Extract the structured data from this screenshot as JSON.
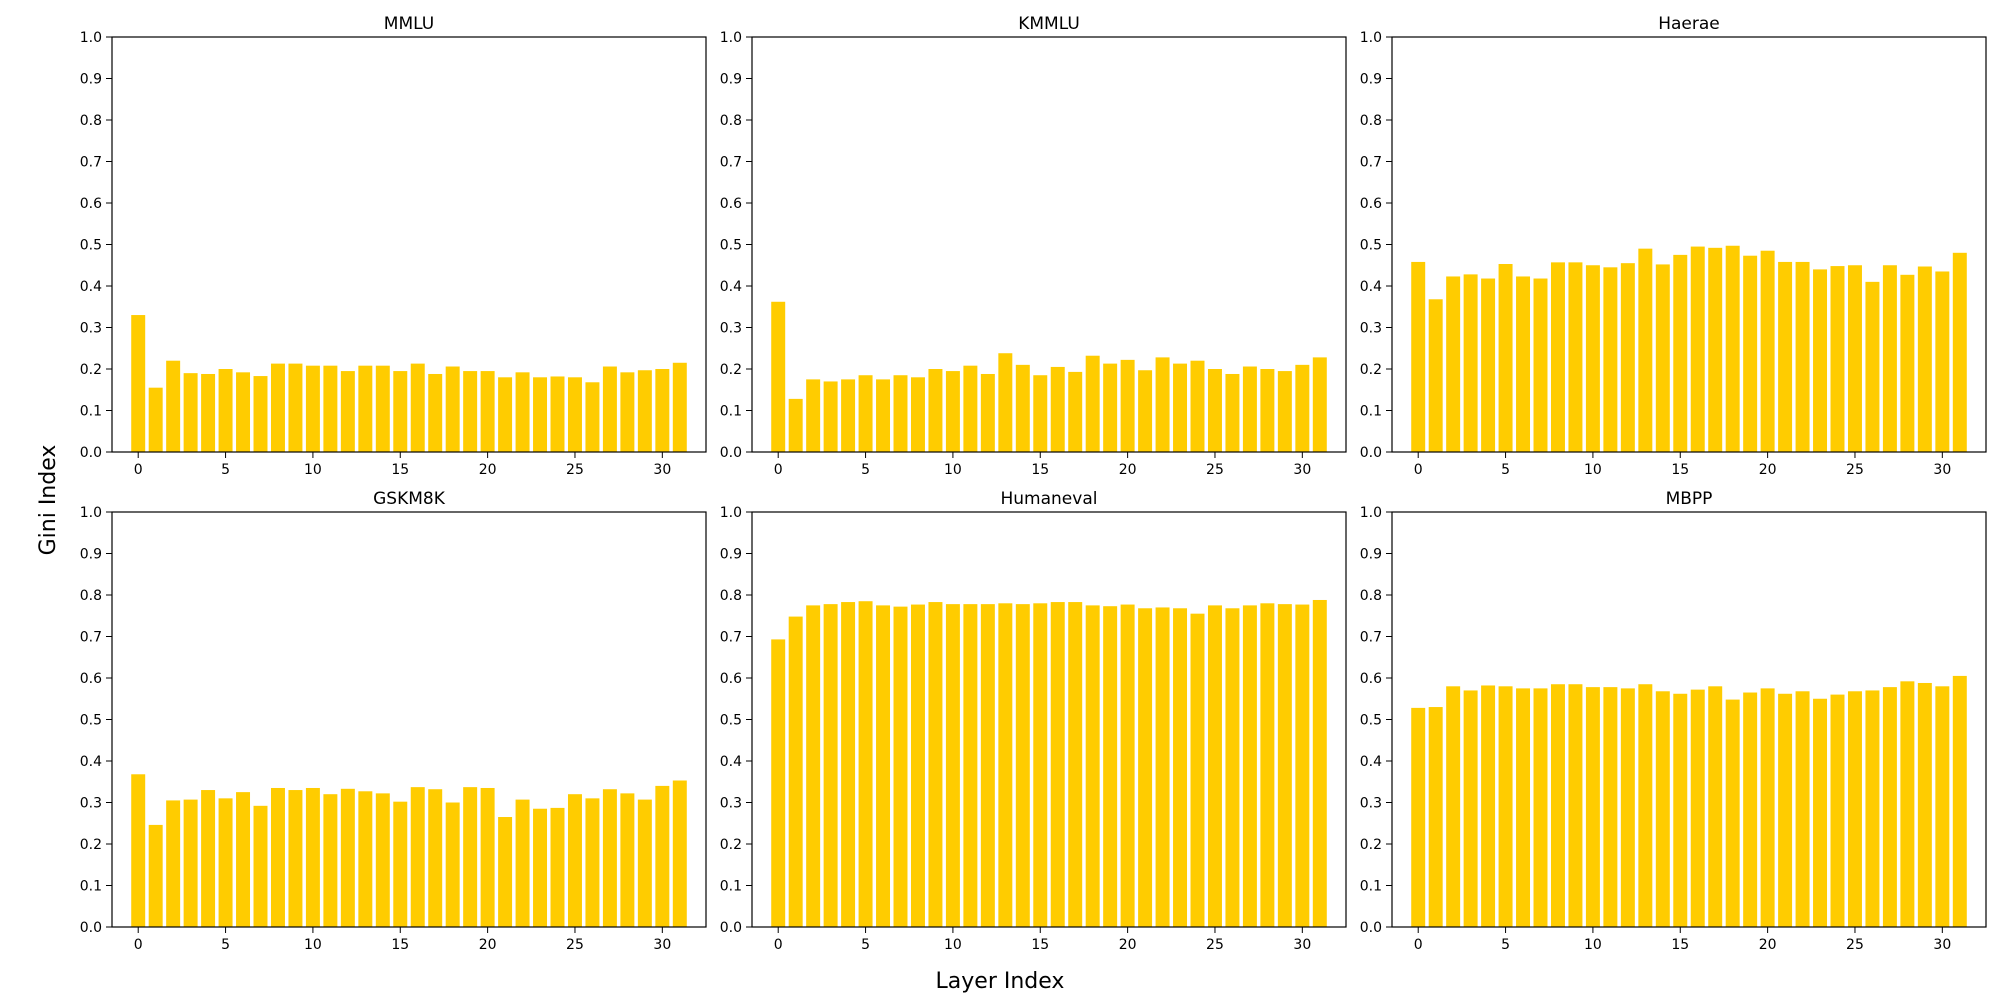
{
  "figure": {
    "xlabel": "Layer Index",
    "ylabel": "Gini Index"
  },
  "chart_data": [
    {
      "type": "bar",
      "title": "MMLU",
      "color": "#ffcc00",
      "ylim": [
        0,
        1.0
      ],
      "xlim": [
        -1.5,
        32.5
      ],
      "yticks": [
        "0.0",
        "0.1",
        "0.2",
        "0.3",
        "0.4",
        "0.5",
        "0.6",
        "0.7",
        "0.8",
        "0.9",
        "1.0"
      ],
      "xticks": [
        "0",
        "5",
        "10",
        "15",
        "20",
        "25",
        "30"
      ],
      "x": [
        0,
        1,
        2,
        3,
        4,
        5,
        6,
        7,
        8,
        9,
        10,
        11,
        12,
        13,
        14,
        15,
        16,
        17,
        18,
        19,
        20,
        21,
        22,
        23,
        24,
        25,
        26,
        27,
        28,
        29,
        30,
        31
      ],
      "values": [
        0.33,
        0.155,
        0.22,
        0.19,
        0.188,
        0.2,
        0.192,
        0.183,
        0.213,
        0.213,
        0.208,
        0.208,
        0.195,
        0.208,
        0.208,
        0.195,
        0.213,
        0.188,
        0.206,
        0.195,
        0.195,
        0.18,
        0.192,
        0.18,
        0.182,
        0.18,
        0.168,
        0.206,
        0.192,
        0.197,
        0.2,
        0.215
      ]
    },
    {
      "type": "bar",
      "title": "KMMLU",
      "color": "#ffcc00",
      "ylim": [
        0,
        1.0
      ],
      "xlim": [
        -1.5,
        32.5
      ],
      "yticks": [
        "0.0",
        "0.1",
        "0.2",
        "0.3",
        "0.4",
        "0.5",
        "0.6",
        "0.7",
        "0.8",
        "0.9",
        "1.0"
      ],
      "xticks": [
        "0",
        "5",
        "10",
        "15",
        "20",
        "25",
        "30"
      ],
      "x": [
        0,
        1,
        2,
        3,
        4,
        5,
        6,
        7,
        8,
        9,
        10,
        11,
        12,
        13,
        14,
        15,
        16,
        17,
        18,
        19,
        20,
        21,
        22,
        23,
        24,
        25,
        26,
        27,
        28,
        29,
        30,
        31
      ],
      "values": [
        0.362,
        0.128,
        0.175,
        0.17,
        0.175,
        0.185,
        0.175,
        0.185,
        0.18,
        0.2,
        0.195,
        0.208,
        0.188,
        0.238,
        0.21,
        0.185,
        0.205,
        0.193,
        0.232,
        0.213,
        0.222,
        0.197,
        0.228,
        0.213,
        0.22,
        0.2,
        0.188,
        0.206,
        0.2,
        0.195,
        0.21,
        0.228
      ]
    },
    {
      "type": "bar",
      "title": "Haerae",
      "color": "#ffcc00",
      "ylim": [
        0,
        1.0
      ],
      "xlim": [
        -1.5,
        32.5
      ],
      "yticks": [
        "0.0",
        "0.1",
        "0.2",
        "0.3",
        "0.4",
        "0.5",
        "0.6",
        "0.7",
        "0.8",
        "0.9",
        "1.0"
      ],
      "xticks": [
        "0",
        "5",
        "10",
        "15",
        "20",
        "25",
        "30"
      ],
      "x": [
        0,
        1,
        2,
        3,
        4,
        5,
        6,
        7,
        8,
        9,
        10,
        11,
        12,
        13,
        14,
        15,
        16,
        17,
        18,
        19,
        20,
        21,
        22,
        23,
        24,
        25,
        26,
        27,
        28,
        29,
        30,
        31
      ],
      "values": [
        0.458,
        0.368,
        0.423,
        0.428,
        0.418,
        0.453,
        0.423,
        0.418,
        0.457,
        0.457,
        0.45,
        0.445,
        0.455,
        0.49,
        0.452,
        0.475,
        0.495,
        0.492,
        0.497,
        0.473,
        0.485,
        0.458,
        0.458,
        0.44,
        0.448,
        0.45,
        0.41,
        0.45,
        0.427,
        0.447,
        0.435,
        0.48
      ]
    },
    {
      "type": "bar",
      "title": "GSKM8K",
      "color": "#ffcc00",
      "ylim": [
        0,
        1.0
      ],
      "xlim": [
        -1.5,
        32.5
      ],
      "yticks": [
        "0.0",
        "0.1",
        "0.2",
        "0.3",
        "0.4",
        "0.5",
        "0.6",
        "0.7",
        "0.8",
        "0.9",
        "1.0"
      ],
      "xticks": [
        "0",
        "5",
        "10",
        "15",
        "20",
        "25",
        "30"
      ],
      "x": [
        0,
        1,
        2,
        3,
        4,
        5,
        6,
        7,
        8,
        9,
        10,
        11,
        12,
        13,
        14,
        15,
        16,
        17,
        18,
        19,
        20,
        21,
        22,
        23,
        24,
        25,
        26,
        27,
        28,
        29,
        30,
        31
      ],
      "values": [
        0.368,
        0.246,
        0.305,
        0.307,
        0.33,
        0.31,
        0.325,
        0.292,
        0.335,
        0.33,
        0.335,
        0.32,
        0.333,
        0.327,
        0.322,
        0.302,
        0.337,
        0.332,
        0.3,
        0.337,
        0.335,
        0.265,
        0.307,
        0.285,
        0.287,
        0.32,
        0.31,
        0.332,
        0.322,
        0.307,
        0.34,
        0.353
      ]
    },
    {
      "type": "bar",
      "title": "Humaneval",
      "color": "#ffcc00",
      "ylim": [
        0,
        1.0
      ],
      "xlim": [
        -1.5,
        32.5
      ],
      "yticks": [
        "0.0",
        "0.1",
        "0.2",
        "0.3",
        "0.4",
        "0.5",
        "0.6",
        "0.7",
        "0.8",
        "0.9",
        "1.0"
      ],
      "xticks": [
        "0",
        "5",
        "10",
        "15",
        "20",
        "25",
        "30"
      ],
      "x": [
        0,
        1,
        2,
        3,
        4,
        5,
        6,
        7,
        8,
        9,
        10,
        11,
        12,
        13,
        14,
        15,
        16,
        17,
        18,
        19,
        20,
        21,
        22,
        23,
        24,
        25,
        26,
        27,
        28,
        29,
        30,
        31
      ],
      "values": [
        0.693,
        0.748,
        0.775,
        0.778,
        0.783,
        0.785,
        0.775,
        0.772,
        0.777,
        0.783,
        0.778,
        0.778,
        0.778,
        0.78,
        0.778,
        0.78,
        0.783,
        0.783,
        0.775,
        0.773,
        0.777,
        0.768,
        0.77,
        0.768,
        0.755,
        0.775,
        0.768,
        0.775,
        0.78,
        0.778,
        0.777,
        0.788
      ]
    },
    {
      "type": "bar",
      "title": "MBPP",
      "color": "#ffcc00",
      "ylim": [
        0,
        1.0
      ],
      "xlim": [
        -1.5,
        32.5
      ],
      "yticks": [
        "0.0",
        "0.1",
        "0.2",
        "0.3",
        "0.4",
        "0.5",
        "0.6",
        "0.7",
        "0.8",
        "0.9",
        "1.0"
      ],
      "xticks": [
        "0",
        "5",
        "10",
        "15",
        "20",
        "25",
        "30"
      ],
      "x": [
        0,
        1,
        2,
        3,
        4,
        5,
        6,
        7,
        8,
        9,
        10,
        11,
        12,
        13,
        14,
        15,
        16,
        17,
        18,
        19,
        20,
        21,
        22,
        23,
        24,
        25,
        26,
        27,
        28,
        29,
        30,
        31
      ],
      "values": [
        0.528,
        0.53,
        0.58,
        0.57,
        0.582,
        0.58,
        0.575,
        0.575,
        0.585,
        0.585,
        0.578,
        0.578,
        0.575,
        0.585,
        0.568,
        0.562,
        0.572,
        0.58,
        0.548,
        0.565,
        0.575,
        0.562,
        0.568,
        0.55,
        0.56,
        0.568,
        0.57,
        0.578,
        0.592,
        0.588,
        0.58,
        0.605
      ]
    }
  ]
}
